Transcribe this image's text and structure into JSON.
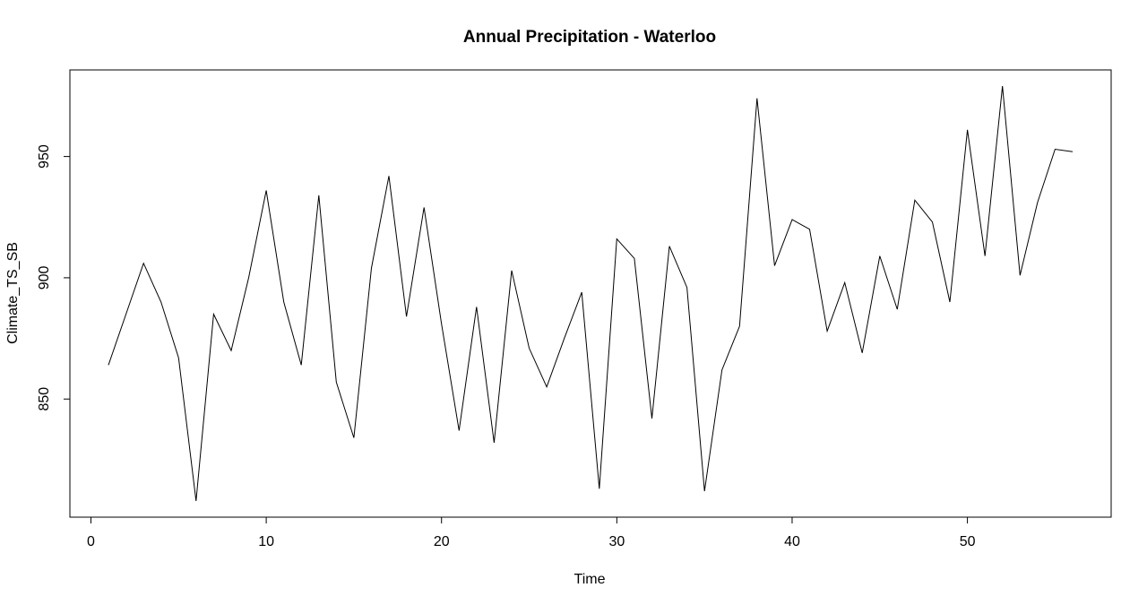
{
  "chart_data": {
    "type": "line",
    "title": "Annual Precipitation - Waterloo",
    "xlabel": "Time",
    "ylabel": "Climate_TS_SB",
    "x": [
      1,
      2,
      3,
      4,
      5,
      6,
      7,
      8,
      9,
      10,
      11,
      12,
      13,
      14,
      15,
      16,
      17,
      18,
      19,
      20,
      21,
      22,
      23,
      24,
      25,
      26,
      27,
      28,
      29,
      30,
      31,
      32,
      33,
      34,
      35,
      36,
      37,
      38,
      39,
      40,
      41,
      42,
      43,
      44,
      45,
      46,
      47,
      48,
      49,
      50,
      51,
      52,
      53,
      54,
      55,
      56
    ],
    "series": [
      {
        "values": [
          864,
          885,
          906,
          890,
          867,
          808,
          885,
          870,
          900,
          936,
          890,
          864,
          934,
          857,
          834,
          904,
          942,
          884,
          929,
          881,
          837,
          888,
          832,
          903,
          871,
          855,
          875,
          894,
          813,
          916,
          908,
          842,
          913,
          896,
          812,
          862,
          880,
          974,
          905,
          924,
          920,
          878,
          898,
          869,
          909,
          887,
          932,
          923,
          890,
          961,
          909,
          979,
          901,
          931,
          953,
          952
        ],
        "color": "#000000"
      }
    ],
    "xlim": [
      -1.2,
      58.2
    ],
    "ylim": [
      801.3,
      985.7
    ],
    "xticks": [
      0,
      10,
      20,
      30,
      40,
      50
    ],
    "yticks": [
      850,
      900,
      950
    ],
    "grid": false,
    "legend": "none"
  }
}
